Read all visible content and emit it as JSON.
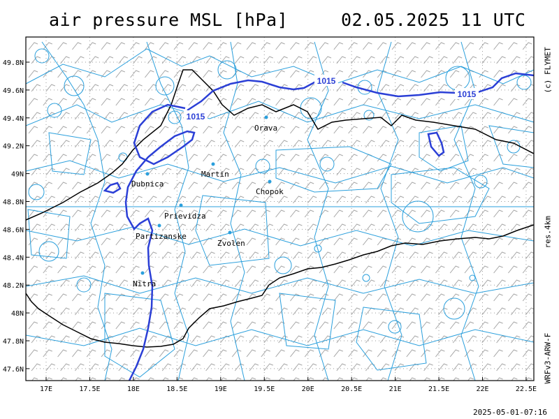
{
  "header": {
    "title": "air pressure MSL [hPa]",
    "datetime": "02.05.2025   11 UTC"
  },
  "side_labels": {
    "copyright": "(c) FLYMET",
    "resolution": "res.4km",
    "model": "WRFv3-ARW-F"
  },
  "footer": {
    "run_time": "2025-05-01-07:16"
  },
  "colors": {
    "isobar": "#2b3fd6",
    "borders": "#2a9fdc",
    "wind_barbs": "#a6a6a6",
    "gridlines": "#9a9a9a",
    "country_border": "#000000"
  },
  "map": {
    "lon_ticks": [
      "17E",
      "17.5E",
      "18E",
      "18.5E",
      "19E",
      "19.5E",
      "20E",
      "20.5E",
      "21E",
      "21.5E",
      "22E",
      "22.5E"
    ],
    "lat_ticks": [
      "49.8N",
      "49.6N",
      "49.4N",
      "49.2N",
      "49N",
      "48.8N",
      "48.6N",
      "48.4N",
      "48.2N",
      "48N",
      "47.8N",
      "47.6N"
    ],
    "isobar_labels": [
      "1015",
      "1015",
      "1015"
    ],
    "cities": [
      {
        "name": "Orava"
      },
      {
        "name": "Dubnica"
      },
      {
        "name": "Martin"
      },
      {
        "name": "Chopok"
      },
      {
        "name": "Prievidza"
      },
      {
        "name": "Partizanske"
      },
      {
        "name": "Zvolen"
      },
      {
        "name": "Nitra"
      }
    ]
  }
}
